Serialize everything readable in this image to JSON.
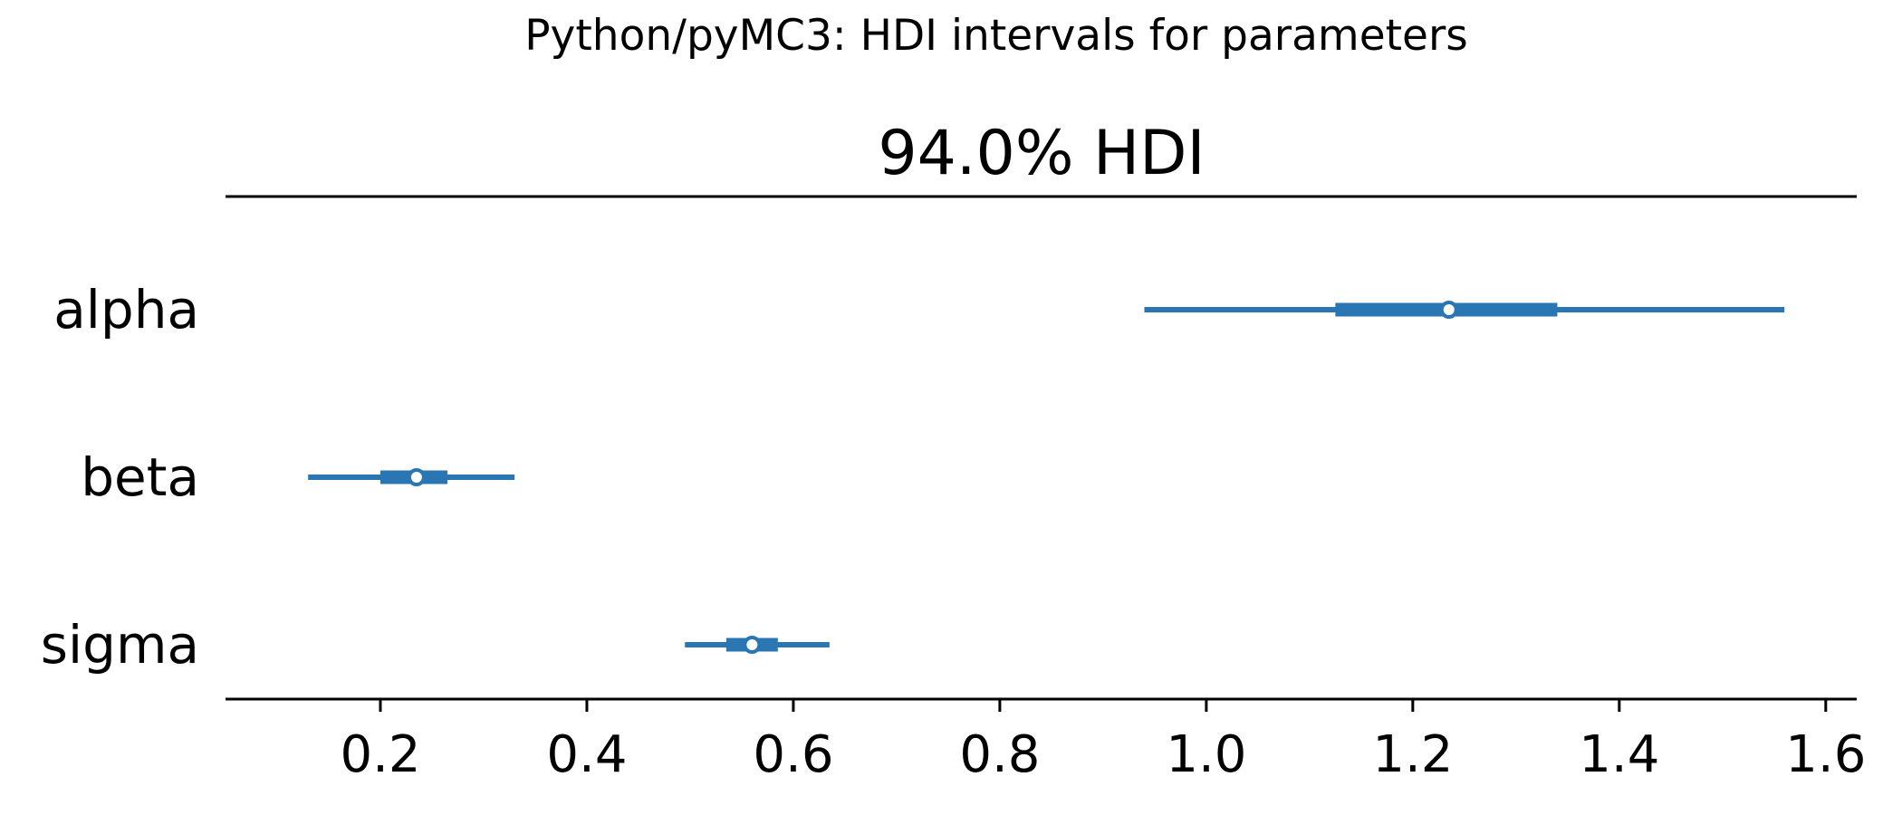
{
  "chart_data": {
    "type": "forest",
    "suptitle": "Python/pyMC3: HDI intervals for parameters",
    "title": "94.0% HDI",
    "xlabel": "",
    "ylabel": "",
    "xlim": [
      0.05,
      1.63
    ],
    "xticks": [
      0.2,
      0.4,
      0.6,
      0.8,
      1.0,
      1.2,
      1.4,
      1.6
    ],
    "xtick_labels": [
      "0.2",
      "0.4",
      "0.6",
      "0.8",
      "1.0",
      "1.2",
      "1.4",
      "1.6"
    ],
    "grid": false,
    "color": "#2a76b3",
    "parameters": [
      {
        "name": "alpha",
        "hdi_94": [
          0.94,
          1.56
        ],
        "iqr": [
          1.125,
          1.34
        ],
        "point": 1.235
      },
      {
        "name": "beta",
        "hdi_94": [
          0.13,
          0.33
        ],
        "iqr": [
          0.2,
          0.265
        ],
        "point": 0.235
      },
      {
        "name": "sigma",
        "hdi_94": [
          0.495,
          0.635
        ],
        "iqr": [
          0.535,
          0.585
        ],
        "point": 0.56
      }
    ]
  }
}
